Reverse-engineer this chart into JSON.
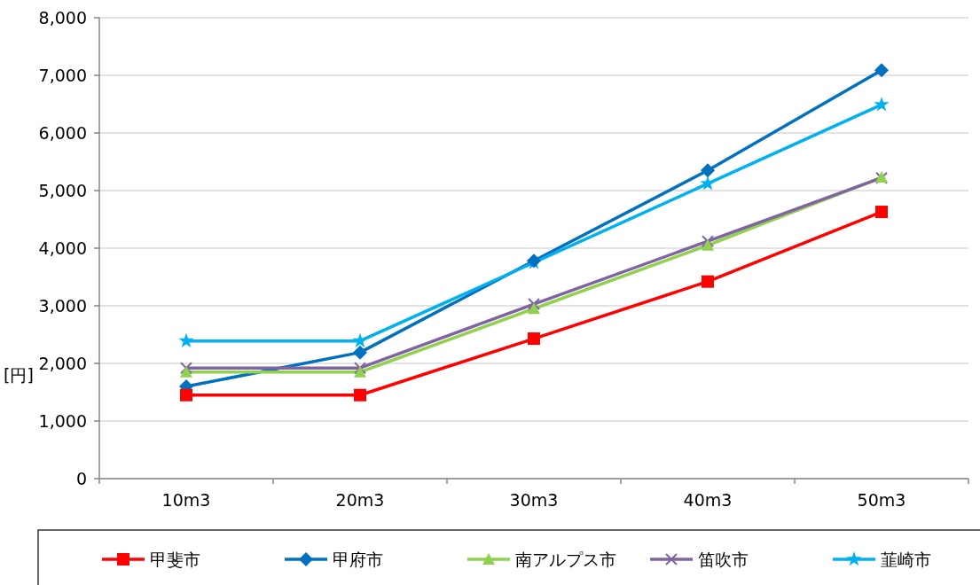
{
  "chart_data": {
    "type": "line",
    "ylabel": "[円]",
    "categories": [
      "10m3",
      "20m3",
      "30m3",
      "40m3",
      "50m3"
    ],
    "ylim": [
      0,
      8000
    ],
    "yticks": [
      {
        "value": 0,
        "label": "0"
      },
      {
        "value": 1000,
        "label": "1,000"
      },
      {
        "value": 2000,
        "label": "2,000"
      },
      {
        "value": 3000,
        "label": "3,000"
      },
      {
        "value": 4000,
        "label": "4,000"
      },
      {
        "value": 5000,
        "label": "5,000"
      },
      {
        "value": 6000,
        "label": "6,000"
      },
      {
        "value": 7000,
        "label": "7,000"
      },
      {
        "value": 8000,
        "label": "8,000"
      }
    ],
    "grid": "y",
    "legend": "bottom",
    "series": [
      {
        "name": "甲斐市",
        "color": "#ff0000",
        "marker": "square",
        "values": [
          1450,
          1450,
          2430,
          3420,
          4630
        ]
      },
      {
        "name": "甲府市",
        "color": "#0070c0",
        "marker": "diamond",
        "values": [
          1600,
          2190,
          3780,
          5350,
          7090
        ]
      },
      {
        "name": "南アルプス市",
        "color": "#92d050",
        "marker": "triangle",
        "values": [
          1850,
          1850,
          2950,
          4050,
          5230
        ]
      },
      {
        "name": "笛吹市",
        "color": "#8064a2",
        "marker": "cross",
        "values": [
          1920,
          1920,
          3030,
          4120,
          5220
        ]
      },
      {
        "name": "韮崎市",
        "color": "#00b0f0",
        "marker": "star",
        "values": [
          2390,
          2390,
          3750,
          5120,
          6490
        ]
      }
    ]
  }
}
